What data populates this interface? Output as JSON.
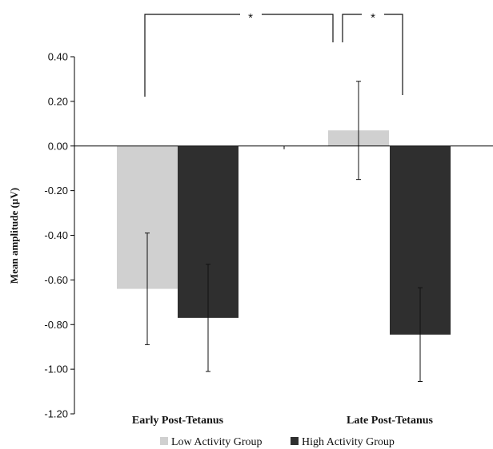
{
  "chart_data": {
    "type": "bar",
    "ylabel": "Mean amplitude (µV)",
    "xlabel": "",
    "categories": [
      "Early Post-Tetanus",
      "Late Post-Tetanus"
    ],
    "ylim": [
      -1.2,
      0.4
    ],
    "yticks": [
      0.4,
      0.2,
      0.0,
      -0.2,
      -0.4,
      -0.6,
      -0.8,
      -1.0,
      -1.2
    ],
    "ytick_labels": [
      "0.40",
      "0.20",
      "0.00",
      "-0.20",
      "-0.40",
      "-0.60",
      "-0.80",
      "-1.00",
      "-1.20"
    ],
    "series": [
      {
        "name": "Low Activity Group",
        "color": "#d0d0d0",
        "values": [
          -0.64,
          0.07
        ],
        "error": [
          0.25,
          0.22
        ]
      },
      {
        "name": "High Activity Group",
        "color": "#2f2f2f",
        "values": [
          -0.77,
          -0.845
        ],
        "error": [
          0.24,
          0.21
        ]
      }
    ],
    "significance": [
      {
        "from": "High Activity Group, Early Post-Tetanus",
        "to": "High Activity Group, Late Post-Tetanus",
        "label": "*"
      },
      {
        "from": "Low Activity Group, Late Post-Tetanus",
        "to": "High Activity Group, Late Post-Tetanus",
        "label": "*"
      }
    ],
    "legend_position": "bottom",
    "grid": false
  }
}
